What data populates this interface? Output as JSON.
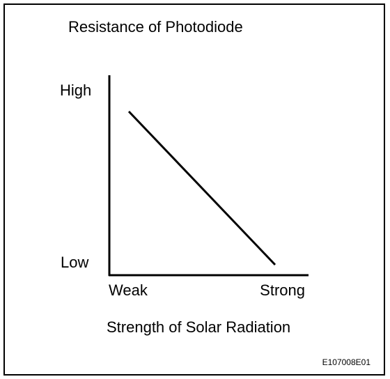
{
  "title": "Resistance of Photodiode",
  "y_axis": {
    "high": "High",
    "low": "Low"
  },
  "x_axis": {
    "low": "Weak",
    "high": "Strong",
    "label": "Strength of Solar Radiation"
  },
  "figure_code": "E107008E01"
}
